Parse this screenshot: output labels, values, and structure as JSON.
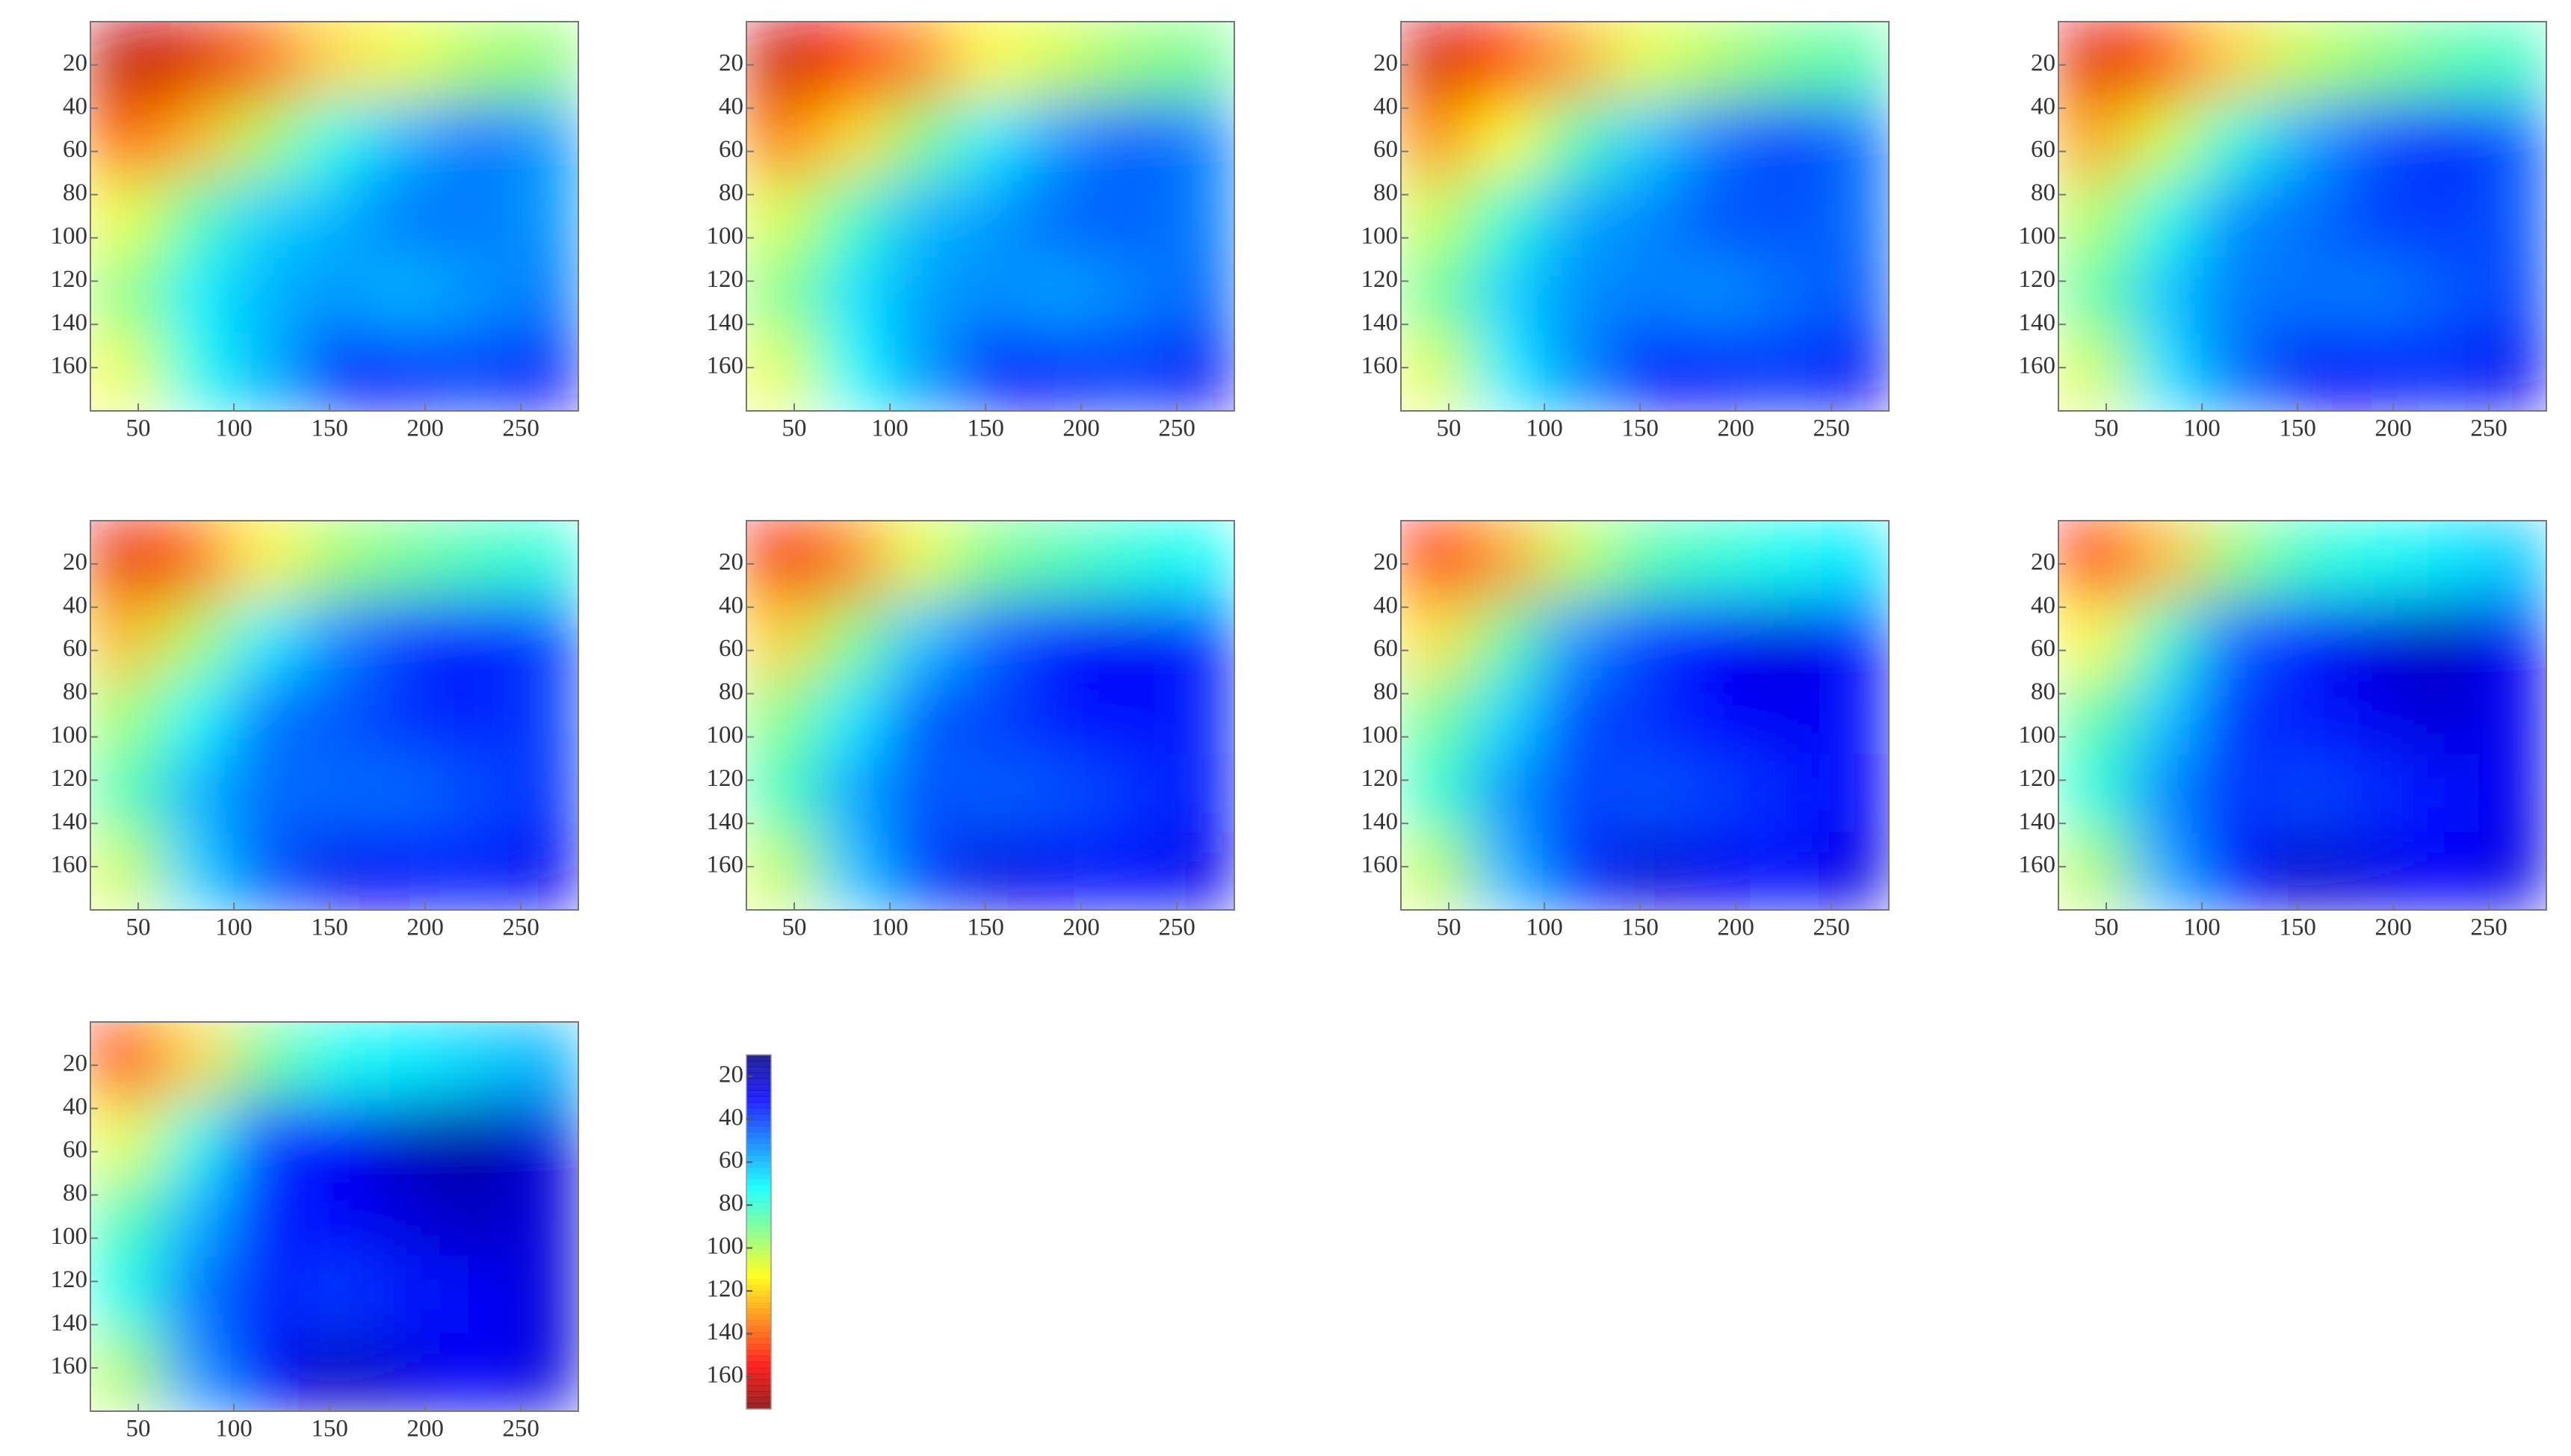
{
  "chart_data": [
    {
      "type": "heatmap",
      "colormap": "jet",
      "xlim": [
        25,
        280
      ],
      "ylim": [
        0,
        180
      ],
      "xticks": [
        50,
        100,
        150,
        200,
        250
      ],
      "yticks": [
        20,
        40,
        60,
        80,
        100,
        120,
        140,
        160
      ],
      "z": [
        [
          165,
          160,
          140,
          120,
          110,
          100,
          95
        ],
        [
          140,
          125,
          100,
          75,
          60,
          50,
          55
        ],
        [
          110,
          85,
          65,
          60,
          50,
          50,
          55
        ],
        [
          95,
          70,
          60,
          55,
          60,
          55,
          50
        ],
        [
          110,
          75,
          60,
          35,
          35,
          40,
          30
        ]
      ]
    },
    {
      "type": "heatmap",
      "colormap": "jet",
      "xlim": [
        25,
        280
      ],
      "ylim": [
        0,
        180
      ],
      "xticks": [
        50,
        100,
        150,
        200,
        250
      ],
      "yticks": [
        20,
        40,
        60,
        80,
        100,
        120,
        140,
        160
      ],
      "z": [
        [
          163,
          155,
          134,
          114,
          105,
          96,
          91
        ],
        [
          136,
          119,
          93,
          69,
          55,
          46,
          51
        ],
        [
          107,
          82,
          61,
          56,
          47,
          46,
          51
        ],
        [
          93,
          68,
          57,
          53,
          57,
          52,
          47
        ],
        [
          109,
          73,
          56,
          33,
          34,
          39,
          29
        ]
      ]
    },
    {
      "type": "heatmap",
      "colormap": "jet",
      "xlim": [
        25,
        280
      ],
      "ylim": [
        0,
        180
      ],
      "xticks": [
        50,
        100,
        150,
        200,
        250
      ],
      "yticks": [
        20,
        40,
        60,
        80,
        100,
        120,
        140,
        160
      ],
      "z": [
        [
          161,
          150,
          128,
          109,
          100,
          91,
          86
        ],
        [
          133,
          113,
          85,
          64,
          50,
          41,
          48
        ],
        [
          104,
          79,
          58,
          53,
          44,
          43,
          48
        ],
        [
          90,
          65,
          54,
          51,
          54,
          49,
          44
        ],
        [
          108,
          70,
          53,
          31,
          33,
          38,
          29
        ]
      ]
    },
    {
      "type": "heatmap",
      "colormap": "jet",
      "xlim": [
        25,
        280
      ],
      "ylim": [
        0,
        180
      ],
      "xticks": [
        50,
        100,
        150,
        200,
        250
      ],
      "yticks": [
        20,
        40,
        60,
        80,
        100,
        120,
        140,
        160
      ],
      "z": [
        [
          159,
          145,
          121,
          103,
          95,
          87,
          82
        ],
        [
          129,
          106,
          78,
          58,
          45,
          37,
          44
        ],
        [
          101,
          76,
          54,
          49,
          41,
          39,
          44
        ],
        [
          88,
          63,
          51,
          49,
          51,
          46,
          41
        ],
        [
          106,
          68,
          49,
          29,
          31,
          36,
          28
        ]
      ]
    },
    {
      "type": "heatmap",
      "colormap": "jet",
      "xlim": [
        25,
        280
      ],
      "ylim": [
        0,
        180
      ],
      "xticks": [
        50,
        100,
        150,
        200,
        250
      ],
      "yticks": [
        20,
        40,
        60,
        80,
        100,
        120,
        140,
        160
      ],
      "z": [
        [
          158,
          140,
          115,
          98,
          90,
          83,
          78
        ],
        [
          125,
          100,
          70,
          53,
          40,
          33,
          40
        ],
        [
          98,
          73,
          50,
          45,
          38,
          35,
          40
        ],
        [
          85,
          60,
          48,
          48,
          48,
          43,
          38
        ],
        [
          105,
          65,
          45,
          28,
          30,
          35,
          28
        ]
      ]
    },
    {
      "type": "heatmap",
      "colormap": "jet",
      "xlim": [
        25,
        280
      ],
      "ylim": [
        0,
        180
      ],
      "xticks": [
        50,
        100,
        150,
        200,
        250
      ],
      "yticks": [
        20,
        40,
        60,
        80,
        100,
        120,
        140,
        160
      ],
      "z": [
        [
          156,
          135,
          109,
          92,
          85,
          78,
          73
        ],
        [
          121,
          94,
          63,
          47,
          35,
          28,
          36
        ],
        [
          94,
          69,
          46,
          41,
          34,
          31,
          36
        ],
        [
          83,
          58,
          44,
          46,
          44,
          39,
          34
        ],
        [
          104,
          63,
          41,
          26,
          29,
          34,
          27
        ]
      ]
    },
    {
      "type": "heatmap",
      "colormap": "jet",
      "xlim": [
        25,
        280
      ],
      "ylim": [
        0,
        180
      ],
      "xticks": [
        50,
        100,
        150,
        200,
        250
      ],
      "yticks": [
        20,
        40,
        60,
        80,
        100,
        120,
        140,
        160
      ],
      "z": [
        [
          154,
          130,
          103,
          86,
          80,
          74,
          69
        ],
        [
          118,
          88,
          55,
          41,
          30,
          24,
          33
        ],
        [
          91,
          66,
          43,
          38,
          31,
          28,
          33
        ],
        [
          80,
          55,
          41,
          44,
          41,
          36,
          31
        ],
        [
          103,
          60,
          38,
          24,
          28,
          33,
          26
        ]
      ]
    },
    {
      "type": "heatmap",
      "colormap": "jet",
      "xlim": [
        25,
        280
      ],
      "ylim": [
        0,
        180
      ],
      "xticks": [
        50,
        100,
        150,
        200,
        250
      ],
      "yticks": [
        20,
        40,
        60,
        80,
        100,
        120,
        140,
        160
      ],
      "z": [
        [
          152,
          125,
          96,
          81,
          75,
          69,
          64
        ],
        [
          114,
          81,
          48,
          36,
          25,
          19,
          29
        ],
        [
          88,
          63,
          39,
          34,
          28,
          24,
          29
        ],
        [
          78,
          53,
          38,
          42,
          38,
          33,
          28
        ],
        [
          101,
          58,
          34,
          22,
          26,
          31,
          26
        ]
      ]
    },
    {
      "type": "heatmap",
      "colormap": "jet",
      "xlim": [
        25,
        280
      ],
      "ylim": [
        0,
        180
      ],
      "xticks": [
        50,
        100,
        150,
        200,
        250
      ],
      "yticks": [
        20,
        40,
        60,
        80,
        100,
        120,
        140,
        160
      ],
      "z": [
        [
          150,
          120,
          90,
          75,
          70,
          65,
          60
        ],
        [
          110,
          75,
          40,
          30,
          20,
          15,
          25
        ],
        [
          85,
          60,
          35,
          30,
          25,
          20,
          25
        ],
        [
          75,
          50,
          35,
          40,
          35,
          30,
          25
        ],
        [
          100,
          55,
          30,
          20,
          25,
          30,
          25
        ]
      ]
    },
    {
      "type": "colorbar",
      "colormap": "jet",
      "clim": [
        10,
        175
      ],
      "ticks": [
        20,
        40,
        60,
        80,
        100,
        120,
        140,
        160
      ]
    }
  ]
}
